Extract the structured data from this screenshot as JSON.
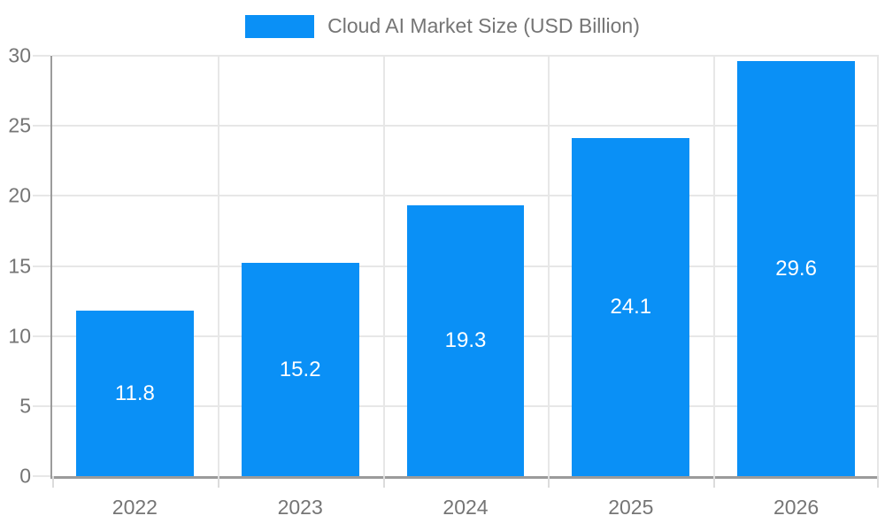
{
  "legend": {
    "label": "Cloud AI Market Size (USD Billion)"
  },
  "chart_data": {
    "type": "bar",
    "title": "Cloud AI Market Size (USD Billion)",
    "series_name": "Cloud AI Market Size (USD Billion)",
    "categories": [
      "2022",
      "2023",
      "2024",
      "2025",
      "2026"
    ],
    "values": [
      11.8,
      15.2,
      19.3,
      24.1,
      29.6
    ],
    "xlabel": "",
    "ylabel": "",
    "ylim": [
      0,
      30
    ],
    "y_ticks": [
      0,
      5,
      10,
      15,
      20,
      25,
      30
    ],
    "grid": true,
    "legend_position": "top",
    "colors": {
      "bar": "#0a90f6",
      "bar_value_label": "#ffffff",
      "axis_text": "#757575",
      "axis_line": "#9b9b9b",
      "gridline": "#e7e7e7"
    }
  }
}
